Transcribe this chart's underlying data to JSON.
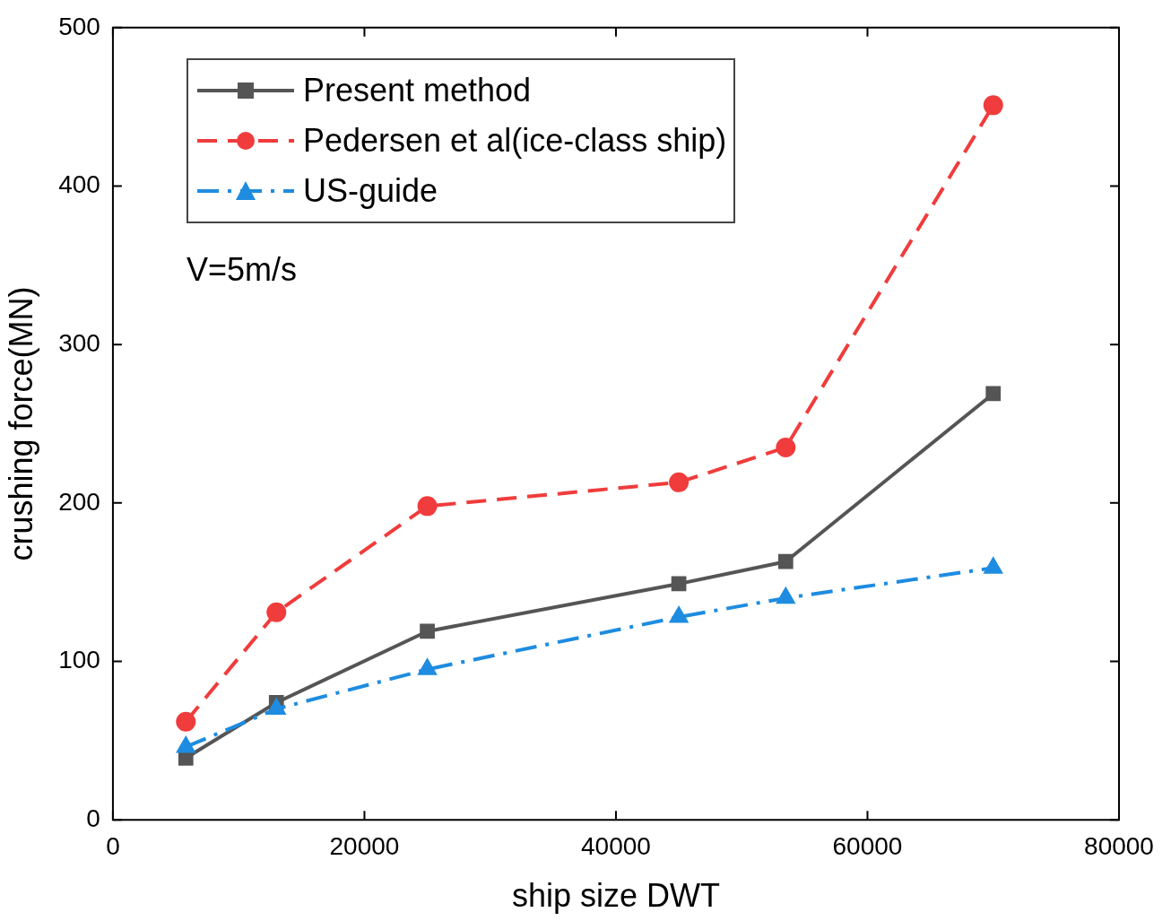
{
  "chart_data": {
    "type": "line",
    "xlabel": "ship size DWT",
    "ylabel": "crushing force(MN)",
    "x": [
      5800,
      13000,
      25000,
      45000,
      53500,
      70000
    ],
    "series": [
      {
        "name": "Present method",
        "color": "#555555",
        "marker": "square",
        "line_style": "solid",
        "values": [
          39,
          74,
          119,
          149,
          163,
          269
        ]
      },
      {
        "name": "Pedersen et al(ice-class ship)",
        "color": "#f03c3c",
        "marker": "circle",
        "line_style": "dashed",
        "values": [
          62,
          131,
          198,
          213,
          235,
          451
        ]
      },
      {
        "name": "US-guide",
        "color": "#1e8ce0",
        "marker": "triangle",
        "line_style": "dashdot",
        "values": [
          46,
          70,
          95,
          128,
          140,
          159
        ]
      }
    ],
    "xlim": [
      0,
      80000
    ],
    "xticks": [
      0,
      20000,
      40000,
      60000,
      80000
    ],
    "ylim": [
      0,
      500
    ],
    "yticks": [
      0,
      100,
      200,
      300,
      400,
      500
    ],
    "grid": false,
    "legend": "top left",
    "annotations": [
      "V=5m/s"
    ]
  }
}
